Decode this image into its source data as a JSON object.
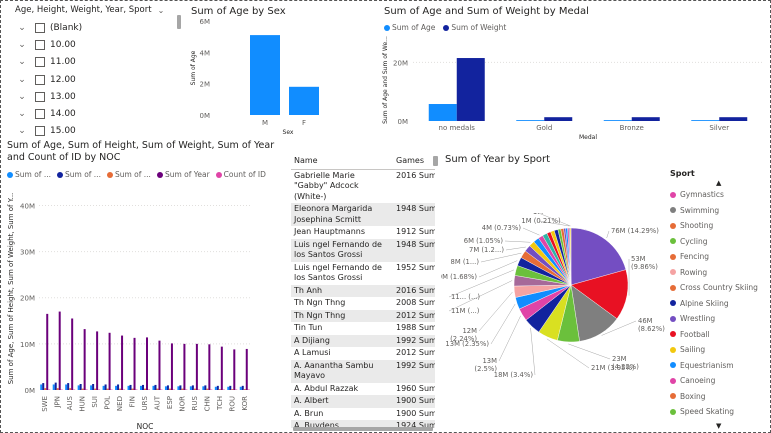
{
  "slicer": {
    "header": "Age, Height, Weight, Year, Sport",
    "items": [
      {
        "label": "(Blank)"
      },
      {
        "label": "10.00"
      },
      {
        "label": "11.00"
      },
      {
        "label": "12.00"
      },
      {
        "label": "13.00"
      },
      {
        "label": "14.00"
      },
      {
        "label": "15.00"
      }
    ]
  },
  "age_by_sex": {
    "title": "Sum of Age by Sex",
    "ylabel": "Sum of Age",
    "xlabel": "Sex",
    "yticks": [
      "6M",
      "4M",
      "2M",
      "0M"
    ],
    "color": "#118dff",
    "chart_data": {
      "type": "bar",
      "categories": [
        "M",
        "F"
      ],
      "values": [
        5100000,
        1800000
      ],
      "ylim": [
        0,
        6000000
      ],
      "title": "Sum of Age by Sex",
      "xlabel": "Sex",
      "ylabel": "Sum of Age"
    }
  },
  "age_weight_by_medal": {
    "title": "Sum of Age and Sum of Weight by Medal",
    "legend": [
      "Sum of Age",
      "Sum of Weight"
    ],
    "colors": [
      "#118dff",
      "#12239e"
    ],
    "ylabel": "Sum of Age and Sum of We...",
    "xlabel": "Medal",
    "yticks": [
      "20M",
      "0M"
    ],
    "chart_data": {
      "type": "bar",
      "categories": [
        "no medals",
        "Gold",
        "Bronze",
        "Silver"
      ],
      "series": [
        {
          "name": "Sum of Age",
          "values": [
            5800000,
            300000,
            300000,
            300000
          ]
        },
        {
          "name": "Sum of Weight",
          "values": [
            21500000,
            1300000,
            1300000,
            1300000
          ]
        }
      ],
      "ylim": [
        0,
        28000000
      ],
      "title": "Sum of Age and Sum of Weight by Medal",
      "xlabel": "Medal"
    }
  },
  "noc_chart": {
    "title_line1": "Sum of Age, Sum of Height, Sum of Weight, Sum of Year",
    "title_line2": "and Count of ID by NOC",
    "legend": [
      "Sum of ...",
      "Sum of ...",
      "Sum of ...",
      "Sum of Year",
      "Count of ID"
    ],
    "colors": [
      "#118dff",
      "#12239e",
      "#e66c37",
      "#6b007b",
      "#e044a7"
    ],
    "ylabel": "Sum of Age, Sum of Height, Sum of Weight, Sum of Y...",
    "xlabel": "NOC",
    "yticks": [
      "0M",
      "10M",
      "20M",
      "30M",
      "40M"
    ],
    "chart_data": {
      "type": "bar",
      "categories": [
        "SWE",
        "JPN",
        "AUS",
        "HUN",
        "SUI",
        "POL",
        "NED",
        "FIN",
        "URS",
        "AUT",
        "ESP",
        "NOR",
        "RUS",
        "CHN",
        "TCH",
        "ROU",
        "KOR"
      ],
      "series": [
        {
          "name": "Sum of ...",
          "values": [
            1.2,
            1.2,
            1.2,
            1.0,
            1.0,
            0.9,
            0.9,
            0.9,
            0.9,
            0.9,
            0.8,
            0.8,
            0.8,
            0.8,
            0.7,
            0.7,
            0.7
          ]
        },
        {
          "name": "Sum of ...",
          "values": [
            1.5,
            1.6,
            1.5,
            1.3,
            1.3,
            1.2,
            1.2,
            1.1,
            1.1,
            1.1,
            1.0,
            1.0,
            1.0,
            1.0,
            0.9,
            0.9,
            0.9
          ]
        },
        {
          "name": "Sum of ...",
          "values": [
            0.4,
            0.4,
            0.4,
            0.3,
            0.3,
            0.3,
            0.3,
            0.3,
            0.3,
            0.3,
            0.3,
            0.3,
            0.3,
            0.3,
            0.2,
            0.2,
            0.2
          ]
        },
        {
          "name": "Sum of Year",
          "values": [
            16.5,
            17.0,
            15.5,
            13.2,
            12.7,
            12.4,
            11.8,
            11.3,
            11.4,
            10.7,
            10.1,
            10.0,
            10.0,
            9.9,
            9.4,
            8.8,
            8.9
          ]
        },
        {
          "name": "Count of ID",
          "values": [
            0.1,
            0.1,
            0.1,
            0.1,
            0.1,
            0.1,
            0.1,
            0.1,
            0.1,
            0.1,
            0.1,
            0.1,
            0.1,
            0.1,
            0.1,
            0.1,
            0.1
          ]
        }
      ],
      "ylim": [
        0,
        44
      ],
      "xlabel": "NOC"
    }
  },
  "athlete_table": {
    "columns": [
      "Name",
      "Games"
    ],
    "rows": [
      {
        "name": "Gabrielle Marie \"Gabby\" Adcock (White-)",
        "games": "2016 Sumn"
      },
      {
        "name": "Eleonora Margarida Josephina Scmitt",
        "games": "1948 Sumn"
      },
      {
        "name": "Jean Hauptmanns",
        "games": "1912 Sumn"
      },
      {
        "name": "Luis ngel Fernando de los Santos Grossi",
        "games": "1948 Sumn"
      },
      {
        "name": "Luis ngel Fernando de los Santos Grossi",
        "games": "1952 Sumn"
      },
      {
        "name": "Th Anh",
        "games": "2016 Sumn"
      },
      {
        "name": "Th Ngn Thng",
        "games": "2008 Sumn"
      },
      {
        "name": "Th Ngn Thng",
        "games": "2012 Sumn"
      },
      {
        "name": "Tin Tun",
        "games": "1988 Sumn"
      },
      {
        "name": "A Dijiang",
        "games": "1992 Sumn"
      },
      {
        "name": "A Lamusi",
        "games": "2012 Sumn"
      },
      {
        "name": "A. Aanantha Sambu Mayavo",
        "games": "1992 Sumn"
      },
      {
        "name": "A. Abdul Razzak",
        "games": "1960 Sumn"
      },
      {
        "name": "A. Albert",
        "games": "1900 Sumn"
      },
      {
        "name": "A. Brun",
        "games": "1900 Sumn"
      },
      {
        "name": "A. Buydens",
        "games": "1924 Sumn"
      }
    ]
  },
  "year_by_sport": {
    "title": "Sum of Year by Sport",
    "legend_title": "Sport",
    "legend": [
      {
        "name": "Gymnastics",
        "color": "#e044a7"
      },
      {
        "name": "Swimming",
        "color": "#7f7f7f"
      },
      {
        "name": "Shooting",
        "color": "#e66c37"
      },
      {
        "name": "Cycling",
        "color": "#6bc03c"
      },
      {
        "name": "Fencing",
        "color": "#e66c37"
      },
      {
        "name": "Rowing",
        "color": "#f5a3a3"
      },
      {
        "name": "Cross Country Skiing",
        "color": "#e66c37"
      },
      {
        "name": "Alpine Skiing",
        "color": "#12239e"
      },
      {
        "name": "Wrestling",
        "color": "#744ec2"
      },
      {
        "name": "Football",
        "color": "#e81123"
      },
      {
        "name": "Sailing",
        "color": "#f2c80f"
      },
      {
        "name": "Equestrianism",
        "color": "#118dff"
      },
      {
        "name": "Canoeing",
        "color": "#e044a7"
      },
      {
        "name": "Boxing",
        "color": "#e66c37"
      },
      {
        "name": "Speed Skating",
        "color": "#6bc03c"
      }
    ],
    "labels": [
      "76M (14.29%)",
      "53M (9.86%)",
      "46M (8.62%)",
      "23M (4.22%)",
      "21M (3.95%)",
      "18M (3.4%)",
      "13M (2.5%)",
      "13M (2.35%)",
      "12M (2.24%)",
      "11M (...)",
      "11... (...)",
      "9M (1.68%)",
      "8M (1...)",
      "7M (1.2...)",
      "6M (1.05%)",
      "4M (0.73%)",
      "1M (0.21%)",
      "1M"
    ],
    "chart_data": {
      "type": "pie",
      "title": "Sum of Year by Sport",
      "slices": [
        {
          "value": 76,
          "color": "#744ec2"
        },
        {
          "value": 53,
          "color": "#e81123"
        },
        {
          "value": 46,
          "color": "#7f7f7f"
        },
        {
          "value": 23,
          "color": "#6bc03c"
        },
        {
          "value": 21,
          "color": "#d9e021"
        },
        {
          "value": 18,
          "color": "#12239e"
        },
        {
          "value": 13.3,
          "color": "#e044a7"
        },
        {
          "value": 12.5,
          "color": "#118dff"
        },
        {
          "value": 11.9,
          "color": "#f5a3a3"
        },
        {
          "value": 11,
          "color": "#a66999"
        },
        {
          "value": 10.5,
          "color": "#6bc03c"
        },
        {
          "value": 9,
          "color": "#12239e"
        },
        {
          "value": 8,
          "color": "#e66c37"
        },
        {
          "value": 7,
          "color": "#744ec2"
        },
        {
          "value": 6,
          "color": "#f2c80f"
        },
        {
          "value": 6,
          "color": "#118dff"
        },
        {
          "value": 5,
          "color": "#e044a7"
        },
        {
          "value": 5,
          "color": "#2fb5a5"
        },
        {
          "value": 4,
          "color": "#e81123"
        },
        {
          "value": 4,
          "color": "#f2c80f"
        },
        {
          "value": 3.9,
          "color": "#12239e"
        },
        {
          "value": 3,
          "color": "#6bc03c"
        },
        {
          "value": 3,
          "color": "#e66c37"
        },
        {
          "value": 2,
          "color": "#744ec2"
        },
        {
          "value": 2,
          "color": "#118dff"
        },
        {
          "value": 1.5,
          "color": "#e044a7"
        },
        {
          "value": 1.1,
          "color": "#7f7f7f"
        },
        {
          "value": 1,
          "color": "#f2c80f"
        }
      ]
    }
  }
}
